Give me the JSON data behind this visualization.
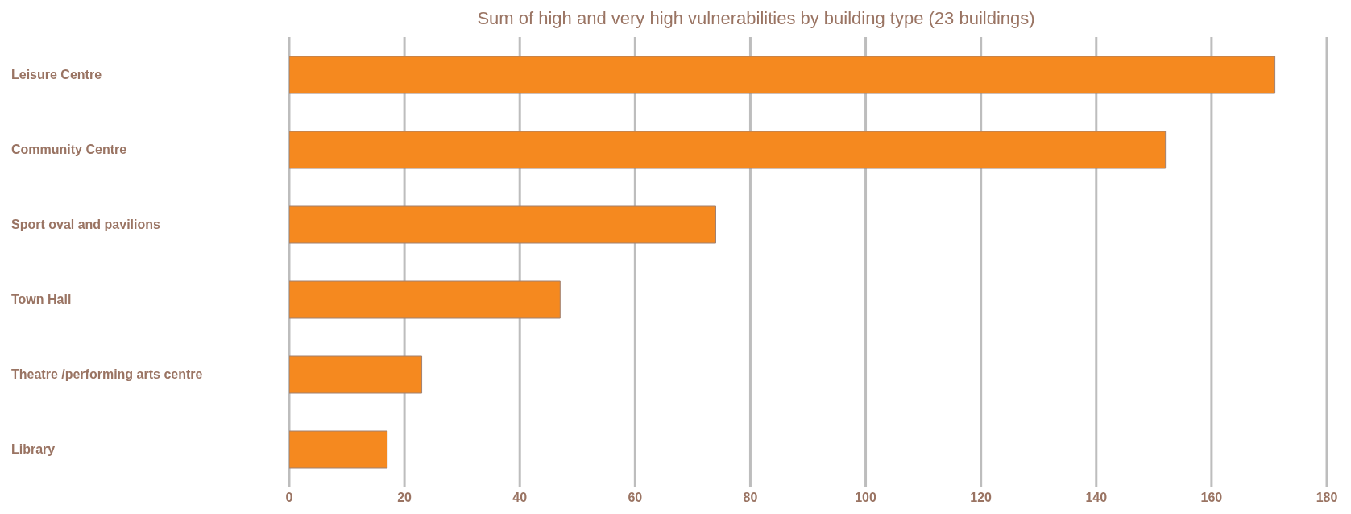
{
  "chart_data": {
    "type": "bar",
    "orientation": "horizontal",
    "title": "Sum of high and very high vulnerabilities by building type (23 buildings)",
    "categories": [
      "Leisure Centre",
      "Community Centre",
      "Sport oval and pavilions",
      "Town Hall",
      "Theatre /performing arts centre",
      "Library"
    ],
    "values": [
      171,
      152,
      74,
      47,
      23,
      17
    ],
    "color": "#f5891f",
    "xlim": [
      0,
      180
    ],
    "xticks": [
      0,
      20,
      40,
      60,
      80,
      100,
      120,
      140,
      160,
      180
    ],
    "grid": "x"
  }
}
